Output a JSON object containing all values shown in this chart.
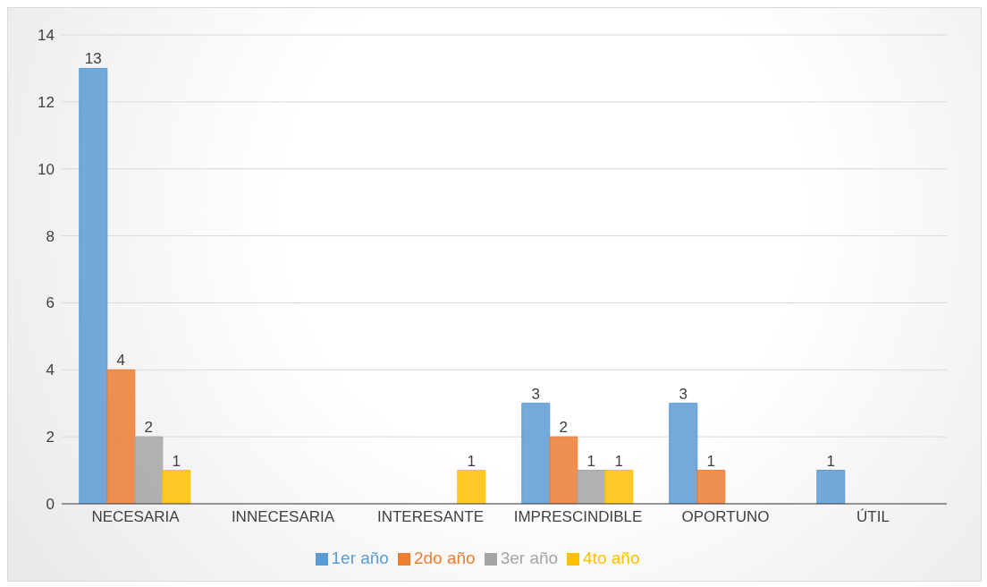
{
  "chart_data": {
    "type": "bar",
    "categories": [
      "NECESARIA",
      "INNECESARIA",
      "INTERESANTE",
      "IMPRESCINDIBLE",
      "OPORTUNO",
      "ÚTIL"
    ],
    "series": [
      {
        "name": "1er año",
        "color": "#5b9bd5",
        "values": [
          13,
          null,
          null,
          3,
          3,
          1
        ]
      },
      {
        "name": "2do año",
        "color": "#ed7d31",
        "values": [
          4,
          null,
          null,
          2,
          1,
          null
        ]
      },
      {
        "name": "3er año",
        "color": "#a5a5a5",
        "values": [
          2,
          null,
          null,
          1,
          null,
          null
        ]
      },
      {
        "name": "4to año",
        "color": "#ffc000",
        "values": [
          1,
          null,
          1,
          1,
          null,
          null
        ]
      }
    ],
    "ylim": [
      0,
      14
    ],
    "yticks": [
      0,
      2,
      4,
      6,
      8,
      10,
      12,
      14
    ],
    "grid": "y",
    "legend": "bottom",
    "data_labels": true
  }
}
